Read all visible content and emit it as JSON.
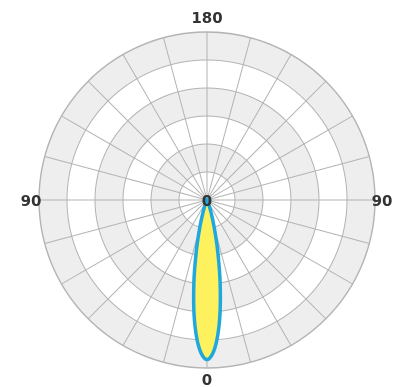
{
  "chart_data": {
    "type": "polar",
    "angle_labels": {
      "top": "180",
      "left": "90",
      "right": "90",
      "bottom": "0",
      "center": "0"
    },
    "angular_gridline_step_deg": 15,
    "radial_rings": 6,
    "shaded_bands": [
      [
        1,
        2
      ],
      [
        3,
        4
      ],
      [
        5,
        6
      ]
    ],
    "series": [
      {
        "values": [
          {
            "angle": 0,
            "r": 5.7
          },
          {
            "angle": 3,
            "r": 5.3
          },
          {
            "angle": 6,
            "r": 4.3
          },
          {
            "angle": 9,
            "r": 3.0
          },
          {
            "angle": 12,
            "r": 1.8
          },
          {
            "angle": 15,
            "r": 0.95
          },
          {
            "angle": 18,
            "r": 0.45
          },
          {
            "angle": 22,
            "r": 0.15
          },
          {
            "angle": 30,
            "r": 0.0
          }
        ]
      }
    ],
    "colors": {
      "fill": "#fdf25e",
      "stroke": "#1fa8dd",
      "grid": "#b3b3b3",
      "band": "#eeeeee",
      "label": "#333333"
    }
  }
}
